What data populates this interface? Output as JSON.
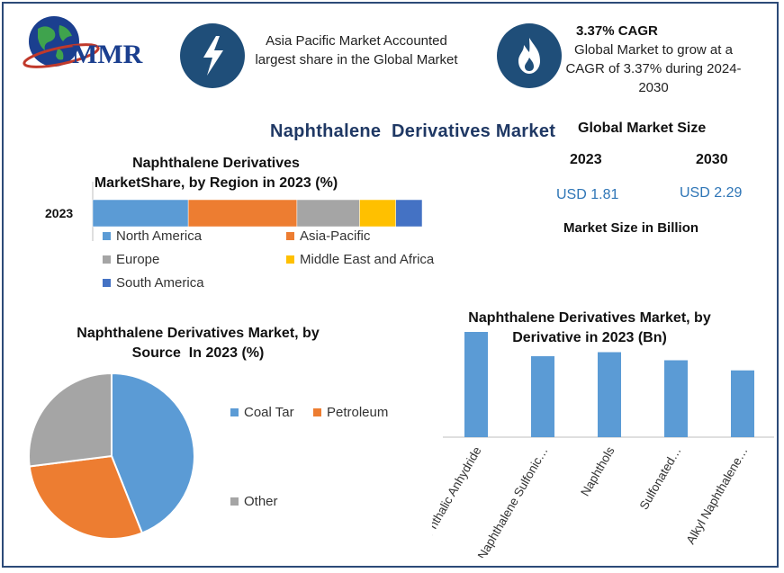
{
  "logo": {
    "text": "MMR"
  },
  "header": {
    "fact1": {
      "text": "Asia Pacific Market Accounted largest share in the Global Market",
      "icon": "lightning-icon"
    },
    "fact2": {
      "title": "3.37% CAGR",
      "text": "Global Market to grow at a CAGR of 3.37% during 2024-2030",
      "icon": "flame-icon"
    }
  },
  "main_title": "Naphthalene  Derivatives Market",
  "global_size": {
    "title": "Global Market Size",
    "year1": "2023",
    "year2": "2030",
    "value1": "USD 1.81",
    "value2": "USD 2.29",
    "caption": "Market Size in Billion"
  },
  "colors": {
    "north_america": "#5b9bd5",
    "asia_pacific": "#ed7d31",
    "europe": "#a5a5a5",
    "mea": "#ffc000",
    "south_america": "#4472c4",
    "navy": "#1f4e79"
  },
  "chart_data": [
    {
      "type": "bar",
      "orientation": "horizontal-stacked",
      "title": "Naphthalene Derivatives MarketShare, by Region in 2023 (%)",
      "categories": [
        "2023"
      ],
      "series": [
        {
          "name": "North America",
          "values": [
            29
          ]
        },
        {
          "name": "Asia-Pacific",
          "values": [
            33
          ]
        },
        {
          "name": "Europe",
          "values": [
            19
          ]
        },
        {
          "name": "Middle East and Africa",
          "values": [
            11
          ]
        },
        {
          "name": "South America",
          "values": [
            8
          ]
        }
      ],
      "xlim": [
        0,
        100
      ],
      "legend": "bottom"
    },
    {
      "type": "pie",
      "title": "Naphthalene Derivatives Market, by Source  In 2023 (%)",
      "labels": [
        "Coal Tar",
        "Petroleum",
        "Other"
      ],
      "values": [
        44,
        29,
        27
      ],
      "legend": "right"
    },
    {
      "type": "bar",
      "title": "Naphthalene Derivatives Market, by Derivative in 2023 (Bn)",
      "categories": [
        "Phthalic Anhydride",
        "Naphthalene Sulfonic…",
        "Naphthols",
        "Sulfonated…",
        "Alkyl Naphthalene…"
      ],
      "values": [
        0.52,
        0.4,
        0.42,
        0.38,
        0.33
      ],
      "ylim": [
        0,
        0.6
      ]
    }
  ]
}
